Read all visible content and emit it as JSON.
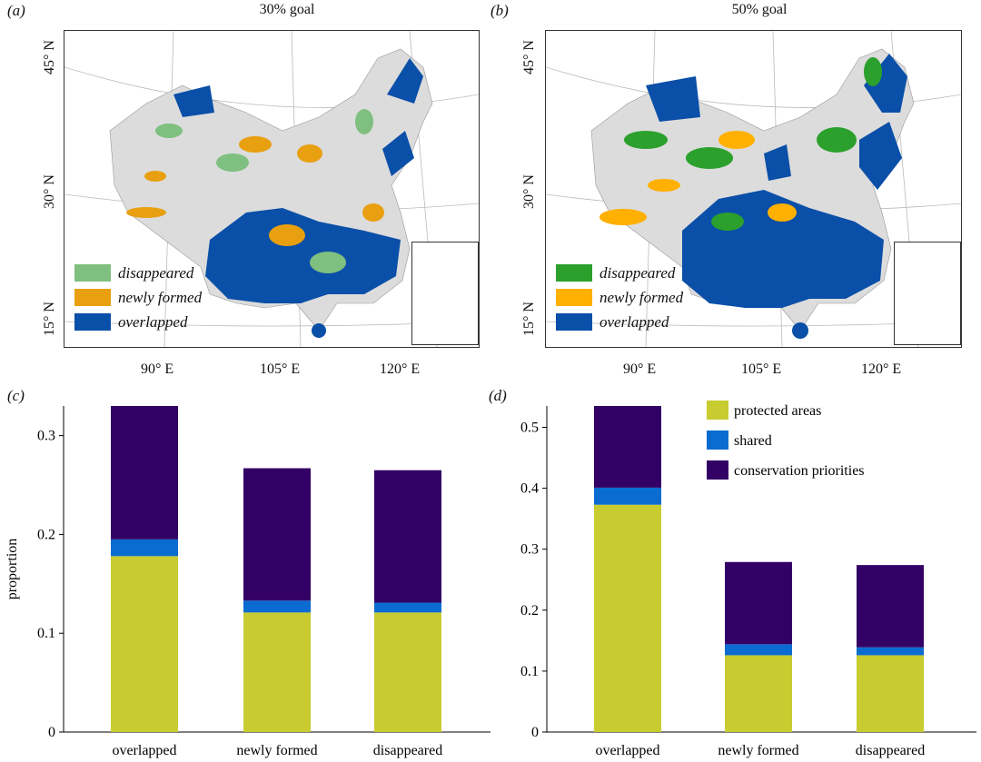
{
  "panels": {
    "a": "(a)",
    "b": "(b)",
    "c": "(c)",
    "d": "(d)"
  },
  "maps": [
    {
      "title": "30% goal",
      "lat_labels": [
        "45° N",
        "30° N",
        "15° N"
      ],
      "lon_labels": [
        "90° E",
        "105° E",
        "120° E"
      ],
      "legend": [
        {
          "label": "disappeared",
          "color": "#7fbf7f"
        },
        {
          "label": "newly formed",
          "color": "#e8a010"
        },
        {
          "label": "overlapped",
          "color": "#0a4fa8"
        }
      ]
    },
    {
      "title": "50% goal",
      "lat_labels": [
        "45° N",
        "30° N",
        "15° N"
      ],
      "lon_labels": [
        "90° E",
        "105° E",
        "120° E"
      ],
      "legend": [
        {
          "label": "disappeared",
          "color": "#2ca02c"
        },
        {
          "label": "newly formed",
          "color": "#ffb000"
        },
        {
          "label": "overlapped",
          "color": "#0a4fa8"
        }
      ]
    }
  ],
  "colors": {
    "land": "#dcdcdc",
    "protected": "#c8cc30",
    "shared": "#0a6cd0",
    "priorities": "#330066"
  },
  "chart_data": [
    {
      "type": "bar",
      "stacked": true,
      "categories": [
        "overlapped",
        "newly formed",
        "disappeared"
      ],
      "ylabel": "proportion",
      "ylim": [
        0,
        0.33
      ],
      "yticks": [
        "0",
        "0.1",
        "0.2",
        "0.3"
      ],
      "ytick_values": [
        0,
        0.1,
        0.2,
        0.3
      ],
      "series": [
        {
          "name": "protected areas",
          "values": [
            0.178,
            0.121,
            0.121
          ]
        },
        {
          "name": "shared",
          "values": [
            0.017,
            0.012,
            0.01
          ]
        },
        {
          "name": "conservation priorities",
          "values": [
            0.135,
            0.134,
            0.134
          ]
        }
      ]
    },
    {
      "type": "bar",
      "stacked": true,
      "categories": [
        "overlapped",
        "newly formed",
        "disappeared"
      ],
      "ylabel": "",
      "ylim": [
        0,
        0.535
      ],
      "yticks": [
        "0",
        "0.1",
        "0.2",
        "0.3",
        "0.4",
        "0.5"
      ],
      "ytick_values": [
        0,
        0.1,
        0.2,
        0.3,
        0.4,
        0.5
      ],
      "legend_position": "top-right",
      "series": [
        {
          "name": "protected areas",
          "values": [
            0.373,
            0.126,
            0.126
          ]
        },
        {
          "name": "shared",
          "values": [
            0.028,
            0.018,
            0.013
          ]
        },
        {
          "name": "conservation priorities",
          "values": [
            0.134,
            0.135,
            0.135
          ]
        }
      ]
    }
  ]
}
